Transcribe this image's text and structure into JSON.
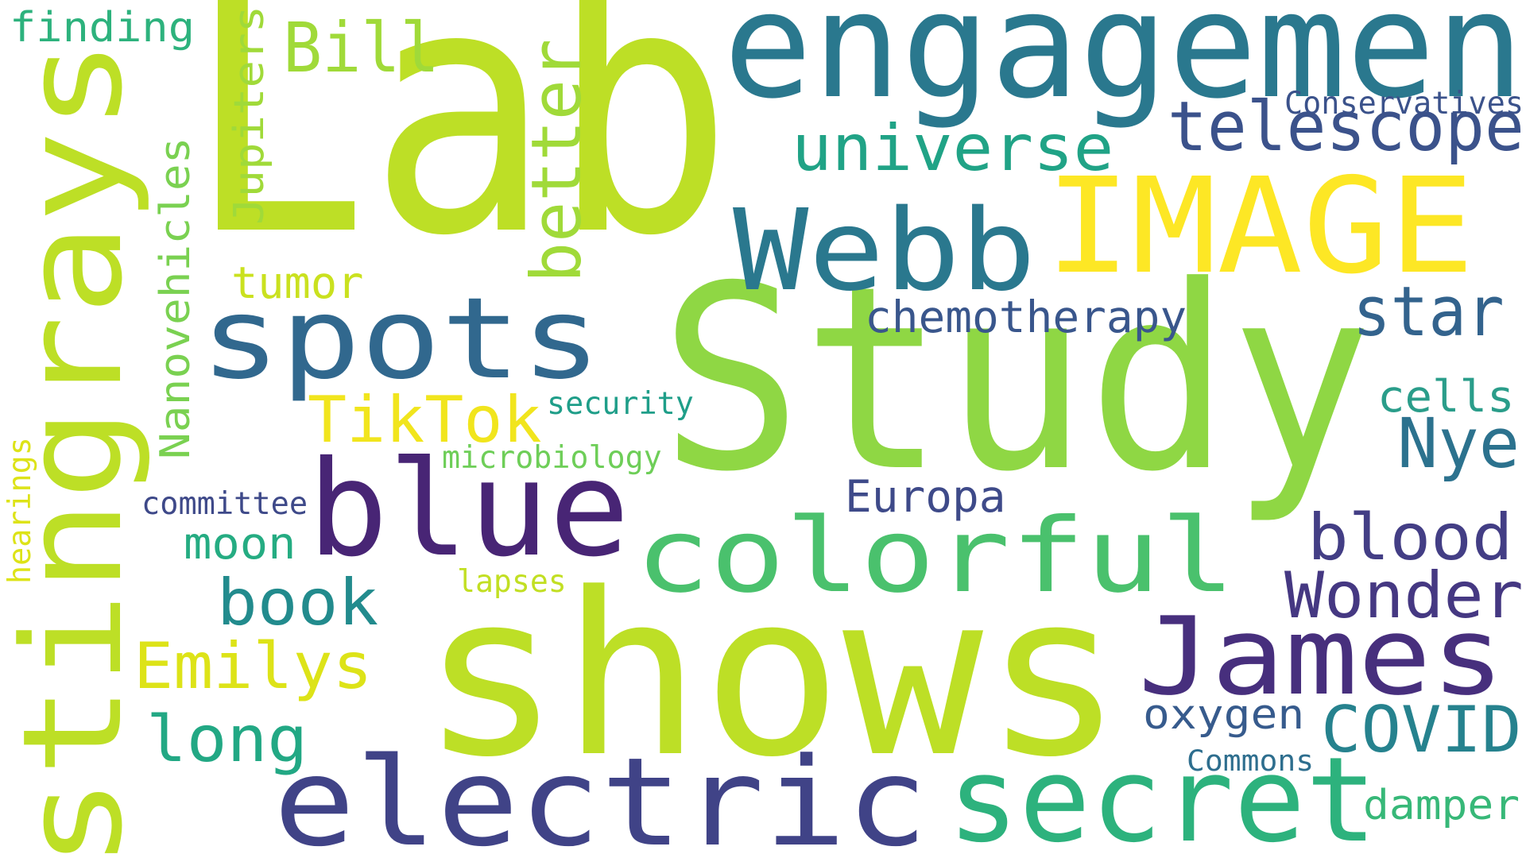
{
  "words": [
    {
      "text": "Lab",
      "color": "#bddf26",
      "rotated": false
    },
    {
      "text": "Study",
      "color": "#8fd744",
      "rotated": false
    },
    {
      "text": "shows",
      "color": "#bddf26",
      "rotated": false
    },
    {
      "text": "engagemen",
      "color": "#2a788e",
      "rotated": false
    },
    {
      "text": "stingrays",
      "color": "#bddf26",
      "rotated": true
    },
    {
      "text": "IMAGE",
      "color": "#fde725",
      "rotated": false
    },
    {
      "text": "Webb",
      "color": "#2a788e",
      "rotated": false
    },
    {
      "text": "spots",
      "color": "#31688e",
      "rotated": false
    },
    {
      "text": "blue",
      "color": "#482575",
      "rotated": false
    },
    {
      "text": "colorful",
      "color": "#4ac16d",
      "rotated": false
    },
    {
      "text": "James",
      "color": "#472f7d",
      "rotated": false
    },
    {
      "text": "electric",
      "color": "#404387",
      "rotated": false
    },
    {
      "text": "secret",
      "color": "#2db27d",
      "rotated": false
    },
    {
      "text": "telescope",
      "color": "#3b528b",
      "rotated": false
    },
    {
      "text": "universe",
      "color": "#20a386",
      "rotated": false
    },
    {
      "text": "better",
      "color": "#a0da39",
      "rotated": true
    },
    {
      "text": "Bill",
      "color": "#a0da39",
      "rotated": false
    },
    {
      "text": "finding",
      "color": "#2db27d",
      "rotated": false
    },
    {
      "text": "Jupiters",
      "color": "#a0da39",
      "rotated": true
    },
    {
      "text": "Conservatives",
      "color": "#3b528b",
      "rotated": false
    },
    {
      "text": "star",
      "color": "#33638d",
      "rotated": false
    },
    {
      "text": "chemotherapy",
      "color": "#39568c",
      "rotated": false
    },
    {
      "text": "tumor",
      "color": "#cae11f",
      "rotated": false
    },
    {
      "text": "Nanovehicles",
      "color": "#7ad151",
      "rotated": true
    },
    {
      "text": "TikTok",
      "color": "#f1e51d",
      "rotated": false
    },
    {
      "text": "security",
      "color": "#1f9e89",
      "rotated": false
    },
    {
      "text": "cells",
      "color": "#2a9d8a",
      "rotated": false
    },
    {
      "text": "Nye",
      "color": "#2c728e",
      "rotated": false
    },
    {
      "text": "microbiology",
      "color": "#6ece58",
      "rotated": false
    },
    {
      "text": "Europa",
      "color": "#3e4a89",
      "rotated": false
    },
    {
      "text": "committee",
      "color": "#3e4989",
      "rotated": false
    },
    {
      "text": "blood",
      "color": "#433e85",
      "rotated": false
    },
    {
      "text": "hearings",
      "color": "#dde318",
      "rotated": true
    },
    {
      "text": "moon",
      "color": "#25ac82",
      "rotated": false
    },
    {
      "text": "Wonder",
      "color": "#453882",
      "rotated": false
    },
    {
      "text": "book",
      "color": "#228b8d",
      "rotated": false
    },
    {
      "text": "lapses",
      "color": "#c2df23",
      "rotated": false
    },
    {
      "text": "Emilys",
      "color": "#dde318",
      "rotated": false
    },
    {
      "text": "long",
      "color": "#22a884",
      "rotated": false
    },
    {
      "text": "oxygen",
      "color": "#375b8d",
      "rotated": false
    },
    {
      "text": "COVID",
      "color": "#26828e",
      "rotated": false
    },
    {
      "text": "Commons",
      "color": "#2e6e8e",
      "rotated": false
    },
    {
      "text": "damper",
      "color": "#37b878",
      "rotated": false
    }
  ]
}
